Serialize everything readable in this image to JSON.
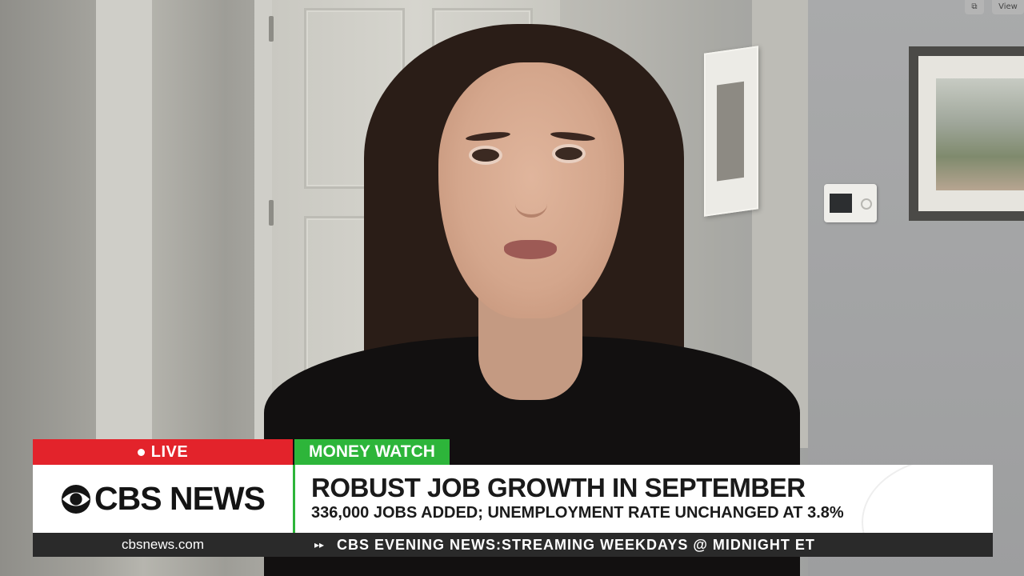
{
  "top_controls": {
    "left_icon_label": "",
    "right_label": "View"
  },
  "lower_third": {
    "live_label": "LIVE",
    "segment_label": "MONEY WATCH",
    "network_logo_text": "CBS NEWS",
    "headline": "ROBUST JOB GROWTH IN SEPTEMBER",
    "subheadline": "336,000 JOBS ADDED; UNEMPLOYMENT RATE UNCHANGED AT 3.8%"
  },
  "ticker": {
    "url": "cbsnews.com",
    "arrow": "▸▸",
    "text": "CBS EVENING NEWS:STREAMING WEEKDAYS @ MIDNIGHT ET"
  },
  "colors": {
    "live_red": "#e3232b",
    "money_green": "#2db53a",
    "ticker_bg": "#2a2a2a"
  }
}
